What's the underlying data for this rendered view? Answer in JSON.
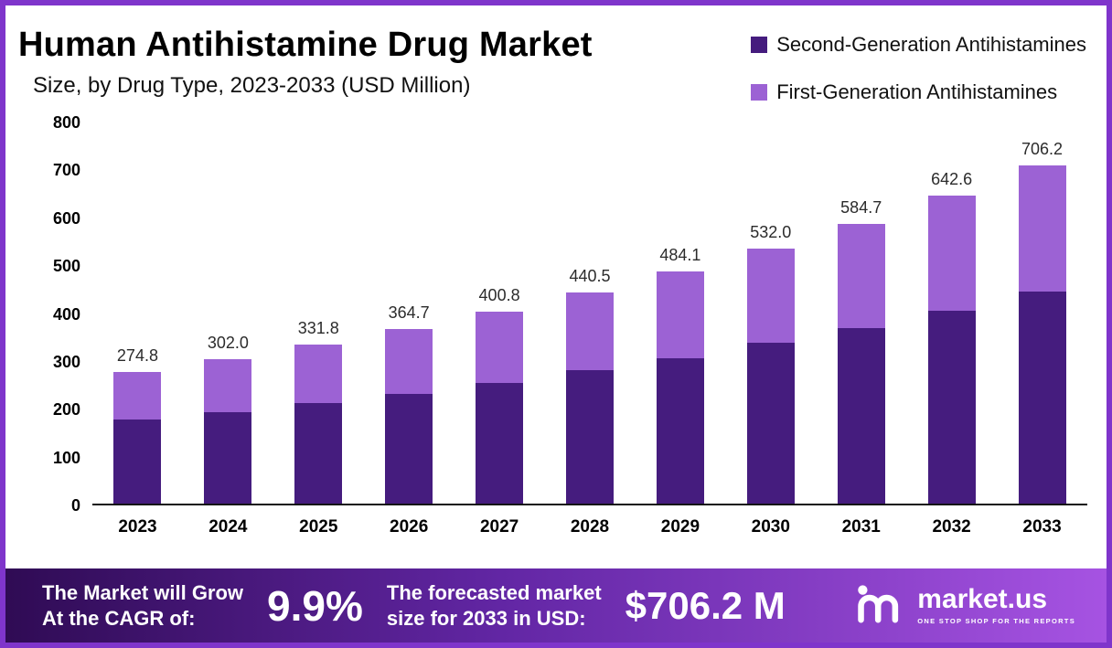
{
  "header": {
    "title": "Human Antihistamine Drug Market",
    "subtitle": "Size, by Drug Type, 2023-2033 (USD Million)"
  },
  "legend": {
    "items": [
      {
        "label": "Second-Generation Antihistamines",
        "color": "#451c7e"
      },
      {
        "label": "First-Generation Antihistamines",
        "color": "#9c62d4"
      }
    ]
  },
  "chart_data": {
    "type": "bar",
    "stacked": true,
    "title": "Human Antihistamine Drug Market Size, by Drug Type, 2023-2033 (USD Million)",
    "categories": [
      "2023",
      "2024",
      "2025",
      "2026",
      "2027",
      "2028",
      "2029",
      "2030",
      "2031",
      "2032",
      "2033"
    ],
    "series": [
      {
        "name": "Second-Generation Antihistamines",
        "color": "#451c7e",
        "values": [
          175.0,
          191.5,
          210.5,
          229.5,
          252.5,
          279.5,
          304.5,
          335.5,
          366.5,
          402.5,
          442.5
        ]
      },
      {
        "name": "First-Generation Antihistamines",
        "color": "#9c62d4",
        "values": [
          99.8,
          110.5,
          121.3,
          135.2,
          148.3,
          161.0,
          179.6,
          196.5,
          218.2,
          240.1,
          263.7
        ]
      }
    ],
    "totals": [
      274.8,
      302.0,
      331.8,
      364.7,
      400.8,
      440.5,
      484.1,
      532.0,
      584.7,
      642.6,
      706.2
    ],
    "total_labels": [
      "274.8",
      "302.0",
      "331.8",
      "364.7",
      "400.8",
      "440.5",
      "484.1",
      "532.0",
      "584.7",
      "642.6",
      "706.2"
    ],
    "xlabel": "",
    "ylabel": "",
    "ylim": [
      0,
      800
    ],
    "yticks": [
      0,
      100,
      200,
      300,
      400,
      500,
      600,
      700,
      800
    ],
    "grid": false,
    "legend_position": "top-right"
  },
  "footer": {
    "cagr_label_line1": "The Market will Grow",
    "cagr_label_line2": "At the CAGR of:",
    "cagr_value": "9.9%",
    "forecast_label_line1": "The forecasted market",
    "forecast_label_line2": "size for 2033 in USD:",
    "forecast_value": "$706.2 M",
    "brand_name": "market.us",
    "brand_tagline": "ONE STOP SHOP FOR THE REPORTS"
  },
  "colors": {
    "frame_border": "#7f35cb",
    "banner_gradient_start": "#2f0b54",
    "banner_gradient_mid": "#6226a4",
    "banner_gradient_end": "#a653e2",
    "axis_line": "#141414"
  }
}
